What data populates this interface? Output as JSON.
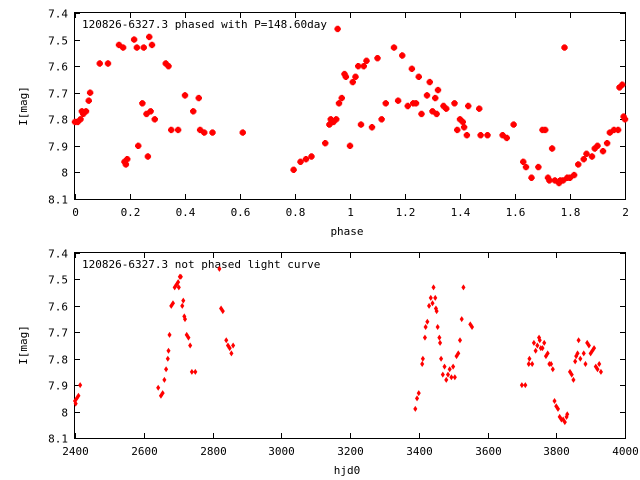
{
  "chart_data": [
    {
      "type": "scatter",
      "title": "120826-6327.3 phased with P=148.60day",
      "xlabel": "phase",
      "ylabel": "I[mag]",
      "xlim": [
        0,
        2
      ],
      "ylim": [
        8.1,
        7.4
      ],
      "y_inverted": true,
      "marker_color": "#ff0000",
      "marker": "filled-star",
      "xticks": [
        "0",
        "0.2",
        "0.4",
        "0.6",
        "0.8",
        "1",
        "1.2",
        "1.4",
        "1.6",
        "1.8",
        "2"
      ],
      "yticks": [
        "7.4",
        "7.5",
        "7.6",
        "7.7",
        "7.8",
        "7.9",
        "8",
        "8.1"
      ],
      "series": [
        {
          "values": [
            [
              0.0,
              7.81
            ],
            [
              0.01,
              7.81
            ],
            [
              0.02,
              7.8
            ],
            [
              0.025,
              7.77
            ],
            [
              0.03,
              7.78
            ],
            [
              0.04,
              7.77
            ],
            [
              0.05,
              7.73
            ],
            [
              0.055,
              7.7
            ],
            [
              0.09,
              7.59
            ],
            [
              0.12,
              7.59
            ],
            [
              0.16,
              7.52
            ],
            [
              0.175,
              7.53
            ],
            [
              0.18,
              7.96
            ],
            [
              0.185,
              7.97
            ],
            [
              0.19,
              7.95
            ],
            [
              0.215,
              7.5
            ],
            [
              0.225,
              7.53
            ],
            [
              0.23,
              7.9
            ],
            [
              0.245,
              7.74
            ],
            [
              0.25,
              7.53
            ],
            [
              0.26,
              7.78
            ],
            [
              0.265,
              7.94
            ],
            [
              0.27,
              7.49
            ],
            [
              0.275,
              7.77
            ],
            [
              0.28,
              7.52
            ],
            [
              0.29,
              7.8
            ],
            [
              0.33,
              7.59
            ],
            [
              0.34,
              7.6
            ],
            [
              0.35,
              7.84
            ],
            [
              0.375,
              7.84
            ],
            [
              0.4,
              7.71
            ],
            [
              0.43,
              7.77
            ],
            [
              0.45,
              7.72
            ],
            [
              0.455,
              7.84
            ],
            [
              0.47,
              7.85
            ],
            [
              0.5,
              7.85
            ],
            [
              0.61,
              7.85
            ],
            [
              0.795,
              7.99
            ],
            [
              0.82,
              7.96
            ],
            [
              0.84,
              7.95
            ],
            [
              0.86,
              7.94
            ],
            [
              0.91,
              7.89
            ],
            [
              0.925,
              7.82
            ],
            [
              0.93,
              7.8
            ],
            [
              0.94,
              7.81
            ],
            [
              0.95,
              7.8
            ],
            [
              0.955,
              7.46
            ],
            [
              0.96,
              7.74
            ],
            [
              0.97,
              7.72
            ],
            [
              0.98,
              7.63
            ],
            [
              0.985,
              7.64
            ],
            [
              1.0,
              7.9
            ],
            [
              1.01,
              7.66
            ],
            [
              1.02,
              7.64
            ],
            [
              1.03,
              7.6
            ],
            [
              1.04,
              7.82
            ],
            [
              1.05,
              7.6
            ],
            [
              1.06,
              7.58
            ],
            [
              1.08,
              7.83
            ],
            [
              1.1,
              7.57
            ],
            [
              1.115,
              7.8
            ],
            [
              1.13,
              7.74
            ],
            [
              1.16,
              7.53
            ],
            [
              1.175,
              7.73
            ],
            [
              1.19,
              7.56
            ],
            [
              1.21,
              7.75
            ],
            [
              1.225,
              7.61
            ],
            [
              1.23,
              7.74
            ],
            [
              1.24,
              7.74
            ],
            [
              1.25,
              7.64
            ],
            [
              1.26,
              7.78
            ],
            [
              1.28,
              7.71
            ],
            [
              1.29,
              7.66
            ],
            [
              1.3,
              7.77
            ],
            [
              1.31,
              7.72
            ],
            [
              1.315,
              7.78
            ],
            [
              1.32,
              7.69
            ],
            [
              1.34,
              7.75
            ],
            [
              1.35,
              7.76
            ],
            [
              1.38,
              7.74
            ],
            [
              1.39,
              7.84
            ],
            [
              1.4,
              7.8
            ],
            [
              1.41,
              7.81
            ],
            [
              1.415,
              7.83
            ],
            [
              1.425,
              7.86
            ],
            [
              1.43,
              7.75
            ],
            [
              1.47,
              7.76
            ],
            [
              1.475,
              7.86
            ],
            [
              1.5,
              7.86
            ],
            [
              1.555,
              7.86
            ],
            [
              1.57,
              7.87
            ],
            [
              1.595,
              7.82
            ],
            [
              1.63,
              7.96
            ],
            [
              1.64,
              7.98
            ],
            [
              1.66,
              8.02
            ],
            [
              1.685,
              7.98
            ],
            [
              1.7,
              7.84
            ],
            [
              1.71,
              7.84
            ],
            [
              1.72,
              8.02
            ],
            [
              1.725,
              8.03
            ],
            [
              1.735,
              7.91
            ],
            [
              1.745,
              8.03
            ],
            [
              1.76,
              8.04
            ],
            [
              1.765,
              8.03
            ],
            [
              1.775,
              8.03
            ],
            [
              1.78,
              7.53
            ],
            [
              1.79,
              8.02
            ],
            [
              1.8,
              8.02
            ],
            [
              1.815,
              8.01
            ],
            [
              1.83,
              7.97
            ],
            [
              1.85,
              7.95
            ],
            [
              1.86,
              7.93
            ],
            [
              1.88,
              7.94
            ],
            [
              1.89,
              7.91
            ],
            [
              1.9,
              7.9
            ],
            [
              1.92,
              7.92
            ],
            [
              1.935,
              7.89
            ],
            [
              1.945,
              7.85
            ],
            [
              1.96,
              7.84
            ],
            [
              1.975,
              7.84
            ],
            [
              1.98,
              7.68
            ],
            [
              1.99,
              7.67
            ],
            [
              1.995,
              7.79
            ],
            [
              2.0,
              7.8
            ]
          ]
        }
      ]
    },
    {
      "type": "scatter",
      "title": "120826-6327.3 not phased light curve",
      "xlabel": "hjd0",
      "ylabel": "I[mag]",
      "xlim": [
        2400,
        4000
      ],
      "ylim": [
        8.1,
        7.4
      ],
      "y_inverted": true,
      "marker_color": "#ff0000",
      "marker": "small-diamond",
      "xticks": [
        "2400",
        "2600",
        "2800",
        "3000",
        "3200",
        "3400",
        "3600",
        "3800",
        "4000"
      ],
      "yticks": [
        "7.4",
        "7.5",
        "7.6",
        "7.7",
        "7.8",
        "7.9",
        "8",
        "8.1"
      ],
      "series": [
        {
          "values": [
            [
              2400,
              7.96
            ],
            [
              2402,
              7.97
            ],
            [
              2405,
              7.95
            ],
            [
              2410,
              7.94
            ],
            [
              2415,
              7.9
            ],
            [
              2642,
              7.91
            ],
            [
              2650,
              7.94
            ],
            [
              2655,
              7.93
            ],
            [
              2660,
              7.88
            ],
            [
              2665,
              7.84
            ],
            [
              2670,
              7.8
            ],
            [
              2672,
              7.77
            ],
            [
              2675,
              7.71
            ],
            [
              2680,
              7.6
            ],
            [
              2685,
              7.59
            ],
            [
              2690,
              7.53
            ],
            [
              2695,
              7.52
            ],
            [
              2700,
              7.51
            ],
            [
              2702,
              7.53
            ],
            [
              2705,
              7.49
            ],
            [
              2708,
              7.49
            ],
            [
              2712,
              7.6
            ],
            [
              2715,
              7.58
            ],
            [
              2718,
              7.64
            ],
            [
              2720,
              7.65
            ],
            [
              2725,
              7.71
            ],
            [
              2730,
              7.72
            ],
            [
              2735,
              7.75
            ],
            [
              2740,
              7.85
            ],
            [
              2750,
              7.85
            ],
            [
              2820,
              7.46
            ],
            [
              2825,
              7.61
            ],
            [
              2830,
              7.62
            ],
            [
              2840,
              7.73
            ],
            [
              2845,
              7.75
            ],
            [
              2850,
              7.76
            ],
            [
              2855,
              7.78
            ],
            [
              2860,
              7.75
            ],
            [
              3390,
              7.99
            ],
            [
              3395,
              7.95
            ],
            [
              3400,
              7.93
            ],
            [
              3410,
              7.82
            ],
            [
              3412,
              7.8
            ],
            [
              3418,
              7.72
            ],
            [
              3420,
              7.68
            ],
            [
              3425,
              7.66
            ],
            [
              3430,
              7.6
            ],
            [
              3435,
              7.57
            ],
            [
              3440,
              7.59
            ],
            [
              3443,
              7.53
            ],
            [
              3448,
              7.57
            ],
            [
              3450,
              7.61
            ],
            [
              3452,
              7.62
            ],
            [
              3455,
              7.68
            ],
            [
              3460,
              7.72
            ],
            [
              3462,
              7.74
            ],
            [
              3465,
              7.8
            ],
            [
              3470,
              7.86
            ],
            [
              3475,
              7.83
            ],
            [
              3480,
              7.88
            ],
            [
              3485,
              7.86
            ],
            [
              3490,
              7.84
            ],
            [
              3495,
              7.87
            ],
            [
              3500,
              7.83
            ],
            [
              3505,
              7.87
            ],
            [
              3510,
              7.79
            ],
            [
              3515,
              7.78
            ],
            [
              3520,
              7.73
            ],
            [
              3525,
              7.65
            ],
            [
              3530,
              7.53
            ],
            [
              3550,
              7.67
            ],
            [
              3555,
              7.68
            ],
            [
              3700,
              7.9
            ],
            [
              3710,
              7.9
            ],
            [
              3720,
              7.82
            ],
            [
              3722,
              7.8
            ],
            [
              3730,
              7.82
            ],
            [
              3735,
              7.74
            ],
            [
              3740,
              7.77
            ],
            [
              3745,
              7.75
            ],
            [
              3750,
              7.72
            ],
            [
              3752,
              7.73
            ],
            [
              3755,
              7.76
            ],
            [
              3760,
              7.76
            ],
            [
              3765,
              7.74
            ],
            [
              3770,
              7.79
            ],
            [
              3775,
              7.78
            ],
            [
              3780,
              7.82
            ],
            [
              3785,
              7.82
            ],
            [
              3790,
              7.84
            ],
            [
              3795,
              7.96
            ],
            [
              3800,
              7.98
            ],
            [
              3805,
              7.99
            ],
            [
              3810,
              8.02
            ],
            [
              3815,
              8.03
            ],
            [
              3820,
              8.03
            ],
            [
              3825,
              8.04
            ],
            [
              3830,
              8.02
            ],
            [
              3832,
              8.01
            ],
            [
              3840,
              7.85
            ],
            [
              3845,
              7.86
            ],
            [
              3850,
              7.88
            ],
            [
              3855,
              7.81
            ],
            [
              3858,
              7.79
            ],
            [
              3862,
              7.78
            ],
            [
              3865,
              7.73
            ],
            [
              3870,
              7.8
            ],
            [
              3880,
              7.78
            ],
            [
              3885,
              7.82
            ],
            [
              3890,
              7.74
            ],
            [
              3895,
              7.75
            ],
            [
              3900,
              7.78
            ],
            [
              3905,
              7.77
            ],
            [
              3910,
              7.76
            ],
            [
              3915,
              7.83
            ],
            [
              3920,
              7.84
            ],
            [
              3925,
              7.82
            ],
            [
              3930,
              7.85
            ]
          ]
        }
      ]
    }
  ]
}
